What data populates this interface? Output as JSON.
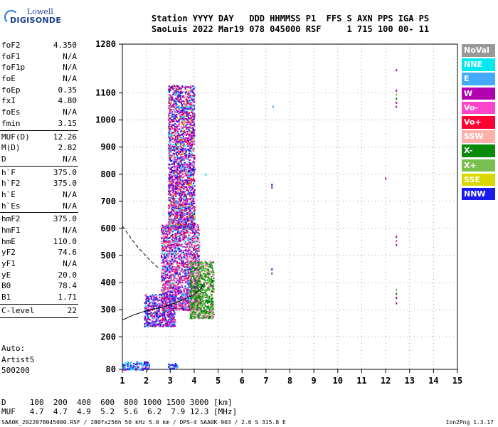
{
  "logo": {
    "line1": "Lowell",
    "line2": "DIGISONDE"
  },
  "header": {
    "line1": "Station YYYY DAY   DDD HHMMSS P1  FFS S AXN PPS IGA PS",
    "line2": "SaoLuis 2022 Mar19 078 045000 RSF     1 715 100 00- 11"
  },
  "params": [
    [
      [
        "foF2",
        "4.350"
      ],
      [
        "foF1",
        "N/A"
      ],
      [
        "foF1p",
        "N/A"
      ],
      [
        "foE",
        "N/A"
      ],
      [
        "foEp",
        "0.35"
      ],
      [
        "fxI",
        "4.80"
      ],
      [
        "foEs",
        "N/A"
      ],
      [
        "fmin",
        "3.15"
      ]
    ],
    [
      [
        "MUF(D)",
        "12.26"
      ],
      [
        "M(D)",
        "2.82"
      ],
      [
        "D",
        "N/A"
      ]
    ],
    [
      [
        "h`F",
        "375.0"
      ],
      [
        "h`F2",
        "375.0"
      ],
      [
        "h`E",
        "N/A"
      ],
      [
        "h`Es",
        "N/A"
      ]
    ],
    [
      [
        "hmF2",
        "375.0"
      ],
      [
        "hmF1",
        "N/A"
      ],
      [
        "hmE",
        "110.0"
      ],
      [
        "yF2",
        "74.6"
      ],
      [
        "yF1",
        "N/A"
      ],
      [
        "yE",
        "20.0"
      ],
      [
        "B0",
        "78.4"
      ],
      [
        "B1",
        "1.71"
      ]
    ],
    [
      [
        "C-level",
        "22"
      ]
    ]
  ],
  "auto": {
    "l1": "Auto:",
    "l2": "Artist5",
    "l3": "500200"
  },
  "muf_table": {
    "row1": "D     100  200  400  600  800 1000 1500 3000 [km]",
    "row2": "MUF   4.7  4.7  4.9  5.2  5.6  6.2  7.9 12.3 [MHz]"
  },
  "footer": "SAA0K_2022078045000.RSF / 280fx256h 50 kHz 5.0 km / DPS-4 SAA0K 903 / 2.6 S 315.8 E",
  "version": "Ion2Png 1.3.17",
  "legend": [
    {
      "label": "NoVal",
      "color": "#999999"
    },
    {
      "label": "NNE",
      "color": "#00e8f0"
    },
    {
      "label": "E",
      "color": "#44aaff"
    },
    {
      "label": "W",
      "color": "#b000b0"
    },
    {
      "label": "Vo-",
      "color": "#ff44cc"
    },
    {
      "label": "Vo+",
      "color": "#ff0033"
    },
    {
      "label": "SSW",
      "color": "#ffb0a8"
    },
    {
      "label": "X-",
      "color": "#0a8a0a"
    },
    {
      "label": "X+",
      "color": "#77c050"
    },
    {
      "label": "SSE",
      "color": "#d8d800"
    },
    {
      "label": "NNW",
      "color": "#1a1aee"
    }
  ],
  "chart_data": {
    "type": "scatter",
    "xlim": [
      1,
      15
    ],
    "ylim": [
      80,
      1280
    ],
    "x_ticks": [
      "1",
      "2",
      "3",
      "4",
      "5",
      "6",
      "7",
      "8",
      "9",
      "10",
      "11",
      "12",
      "13",
      "14",
      "15"
    ],
    "y_ticks": [
      "80",
      "200",
      "300",
      "400",
      "500",
      "600",
      "700",
      "800",
      "900",
      "1000",
      "1100",
      "1280"
    ],
    "grid": true,
    "ordinary_trace": [
      [
        1.0,
        262
      ],
      [
        1.5,
        282
      ],
      [
        2.0,
        296
      ],
      [
        2.5,
        305
      ],
      [
        3.0,
        318
      ],
      [
        3.5,
        335
      ],
      [
        4.0,
        356
      ],
      [
        4.3,
        380
      ],
      [
        4.4,
        395
      ]
    ],
    "dashed_trace": [
      [
        1.0,
        608
      ],
      [
        1.6,
        535
      ],
      [
        2.2,
        478
      ],
      [
        2.5,
        455
      ]
    ],
    "clusters": [
      {
        "x": [
          1.9,
          3.2
        ],
        "y": [
          240,
          360
        ],
        "weights": {
          "NNW": 4,
          "W": 3,
          "Vo-": 2,
          "E": 1,
          "NNE": 1,
          "Vo+": 1
        }
      },
      {
        "x": [
          2.6,
          4.2
        ],
        "y": [
          300,
          620
        ],
        "weights": {
          "NNW": 3,
          "W": 3,
          "Vo-": 3,
          "Vo+": 2,
          "SSW": 2,
          "E": 1,
          "NNE": 1
        }
      },
      {
        "x": [
          2.9,
          4.0
        ],
        "y": [
          600,
          1130
        ],
        "weights": {
          "W": 3,
          "NNW": 3,
          "Vo-": 2,
          "Vo+": 2,
          "NNE": 1,
          "SSE": 1,
          "E": 1
        }
      },
      {
        "x": [
          3.8,
          4.8
        ],
        "y": [
          270,
          480
        ],
        "weights": {
          "X-": 5,
          "X+": 3,
          "SSW": 1,
          "Vo-": 1
        }
      },
      {
        "x": [
          1.0,
          2.1
        ],
        "y": [
          80,
          110
        ],
        "weights": {
          "NNW": 3,
          "E": 2,
          "NNE": 2,
          "W": 1
        }
      },
      {
        "x": [
          2.9,
          3.3
        ],
        "y": [
          84,
          104
        ],
        "weights": {
          "NNW": 2,
          "E": 1
        }
      }
    ],
    "isolated": [
      {
        "x": 12.45,
        "y": 1050,
        "color": "#b000b0"
      },
      {
        "x": 12.45,
        "y": 1065,
        "color": "#b000b0"
      },
      {
        "x": 12.45,
        "y": 1080,
        "color": "#0a8a0a"
      },
      {
        "x": 12.45,
        "y": 1095,
        "color": "#77c050"
      },
      {
        "x": 12.45,
        "y": 1110,
        "color": "#b000b0"
      },
      {
        "x": 12.45,
        "y": 1185,
        "color": "#b000b0"
      },
      {
        "x": 12.45,
        "y": 540,
        "color": "#b000b0"
      },
      {
        "x": 12.45,
        "y": 555,
        "color": "#ff44cc"
      },
      {
        "x": 12.45,
        "y": 570,
        "color": "#b000b0"
      },
      {
        "x": 12.45,
        "y": 345,
        "color": "#b000b0"
      },
      {
        "x": 12.45,
        "y": 360,
        "color": "#0a8a0a"
      },
      {
        "x": 12.45,
        "y": 375,
        "color": "#77c050"
      },
      {
        "x": 12.45,
        "y": 325,
        "color": "#b000b0"
      },
      {
        "x": 12.0,
        "y": 785,
        "color": "#b000b0"
      },
      {
        "x": 7.25,
        "y": 762,
        "color": "#1a1aee"
      },
      {
        "x": 7.25,
        "y": 752,
        "color": "#b000b0"
      },
      {
        "x": 7.25,
        "y": 450,
        "color": "#1a1aee"
      },
      {
        "x": 7.25,
        "y": 435,
        "color": "#0a8a0a"
      },
      {
        "x": 7.3,
        "y": 1050,
        "color": "#44aaff"
      },
      {
        "x": 4.5,
        "y": 800,
        "color": "#00e8f0"
      }
    ]
  }
}
